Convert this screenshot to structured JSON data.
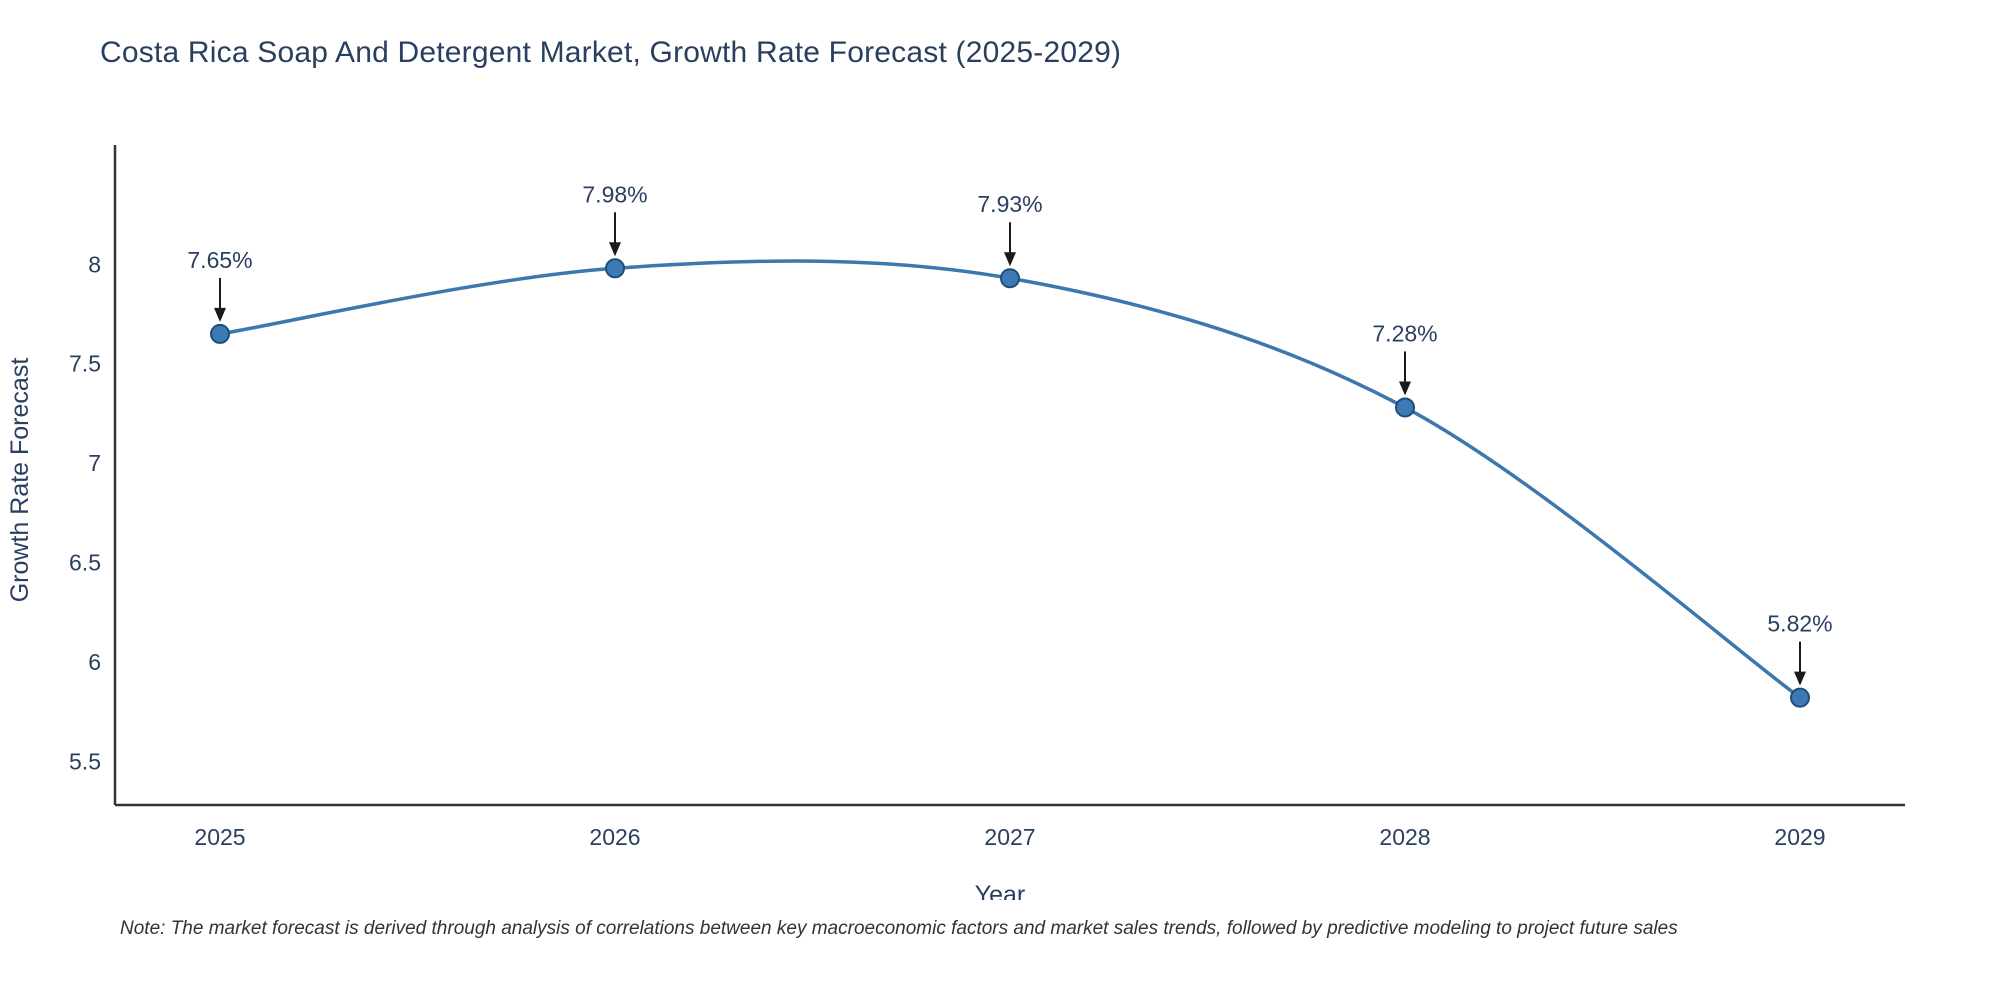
{
  "title": "Costa Rica Soap And Detergent Market, Growth Rate Forecast (2025-2029)",
  "note": "Note: The market forecast is derived through analysis of correlations between key macroeconomic factors and market sales trends, followed by predictive modeling to project future sales",
  "chart_data": {
    "type": "line",
    "title": "Costa Rica Soap And Detergent Market, Growth Rate Forecast (2025-2029)",
    "x": [
      "2025",
      "2026",
      "2027",
      "2028",
      "2029"
    ],
    "values": [
      7.65,
      7.98,
      7.93,
      7.28,
      5.82
    ],
    "point_labels": [
      "7.65%",
      "7.98%",
      "7.93%",
      "7.28%",
      "5.82%"
    ],
    "xlabel": "Year",
    "ylabel": "Growth Rate Forecast",
    "yticks": [
      5.5,
      6,
      6.5,
      7,
      7.5,
      8
    ],
    "ylim": [
      5.28,
      8.55
    ],
    "grid": false,
    "legend": "none",
    "colors": {
      "line": "#3c77ad",
      "marker": "#3d7ab5",
      "marker_edge": "#1d4e77",
      "annotation_text": "#2a3f5f",
      "annotation_arrow": "#1a1a1a",
      "axis_line": "#333333",
      "tick_label": "#2a3f5f",
      "axis_title": "#2a3f5f"
    }
  }
}
